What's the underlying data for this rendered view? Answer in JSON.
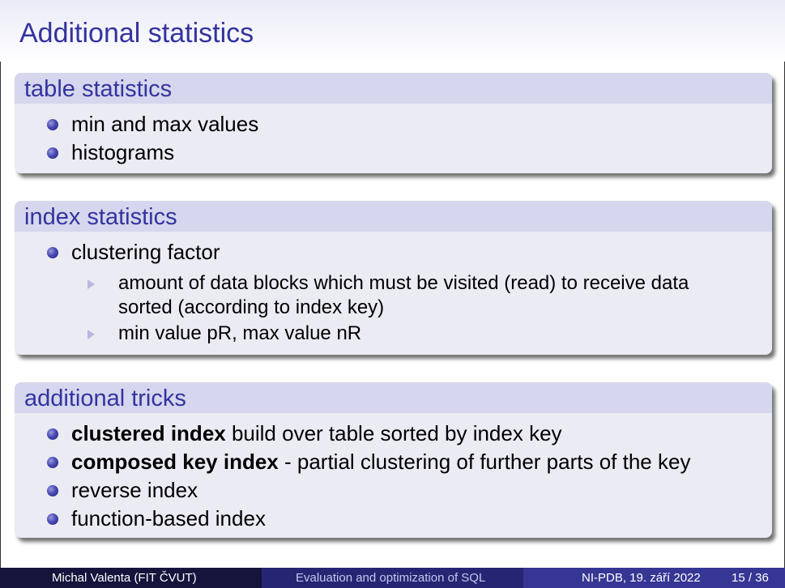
{
  "slide": {
    "title": "Additional statistics"
  },
  "blocks": {
    "table_stats": {
      "title": "table statistics",
      "items": [
        "min and max values",
        "histograms"
      ]
    },
    "index_stats": {
      "title": "index statistics",
      "item": "clustering factor",
      "sub_items": [
        "amount of data blocks which must be visited (read) to receive data",
        "sorted (according to index key)",
        "min value pR, max value nR"
      ]
    },
    "tricks": {
      "title": "additional tricks",
      "items": [
        {
          "bold": "clustered index",
          "rest": " build over table sorted by index key"
        },
        {
          "bold": "composed key index",
          "rest": " - partial clustering of further parts of the key"
        },
        {
          "bold": "",
          "rest": "reverse index"
        },
        {
          "bold": "",
          "rest": "function-based index"
        }
      ]
    }
  },
  "footer": {
    "author": "Michal Valenta  (FIT ČVUT)",
    "topic": "Evaluation and optimization of SQL",
    "course_date": "NI-PDB, 19. září 2022",
    "page": "15 / 36"
  },
  "colors": {
    "title": "#33339f",
    "block_head": "#d6d6ee",
    "block_body": "#ebebf4",
    "footer_dark": "#14143c",
    "footer_mid": "#252573",
    "footer_light": "#363694"
  },
  "icons": {
    "bullet": "ball-bullet-icon",
    "sub_bullet": "triangle-bullet-icon"
  }
}
